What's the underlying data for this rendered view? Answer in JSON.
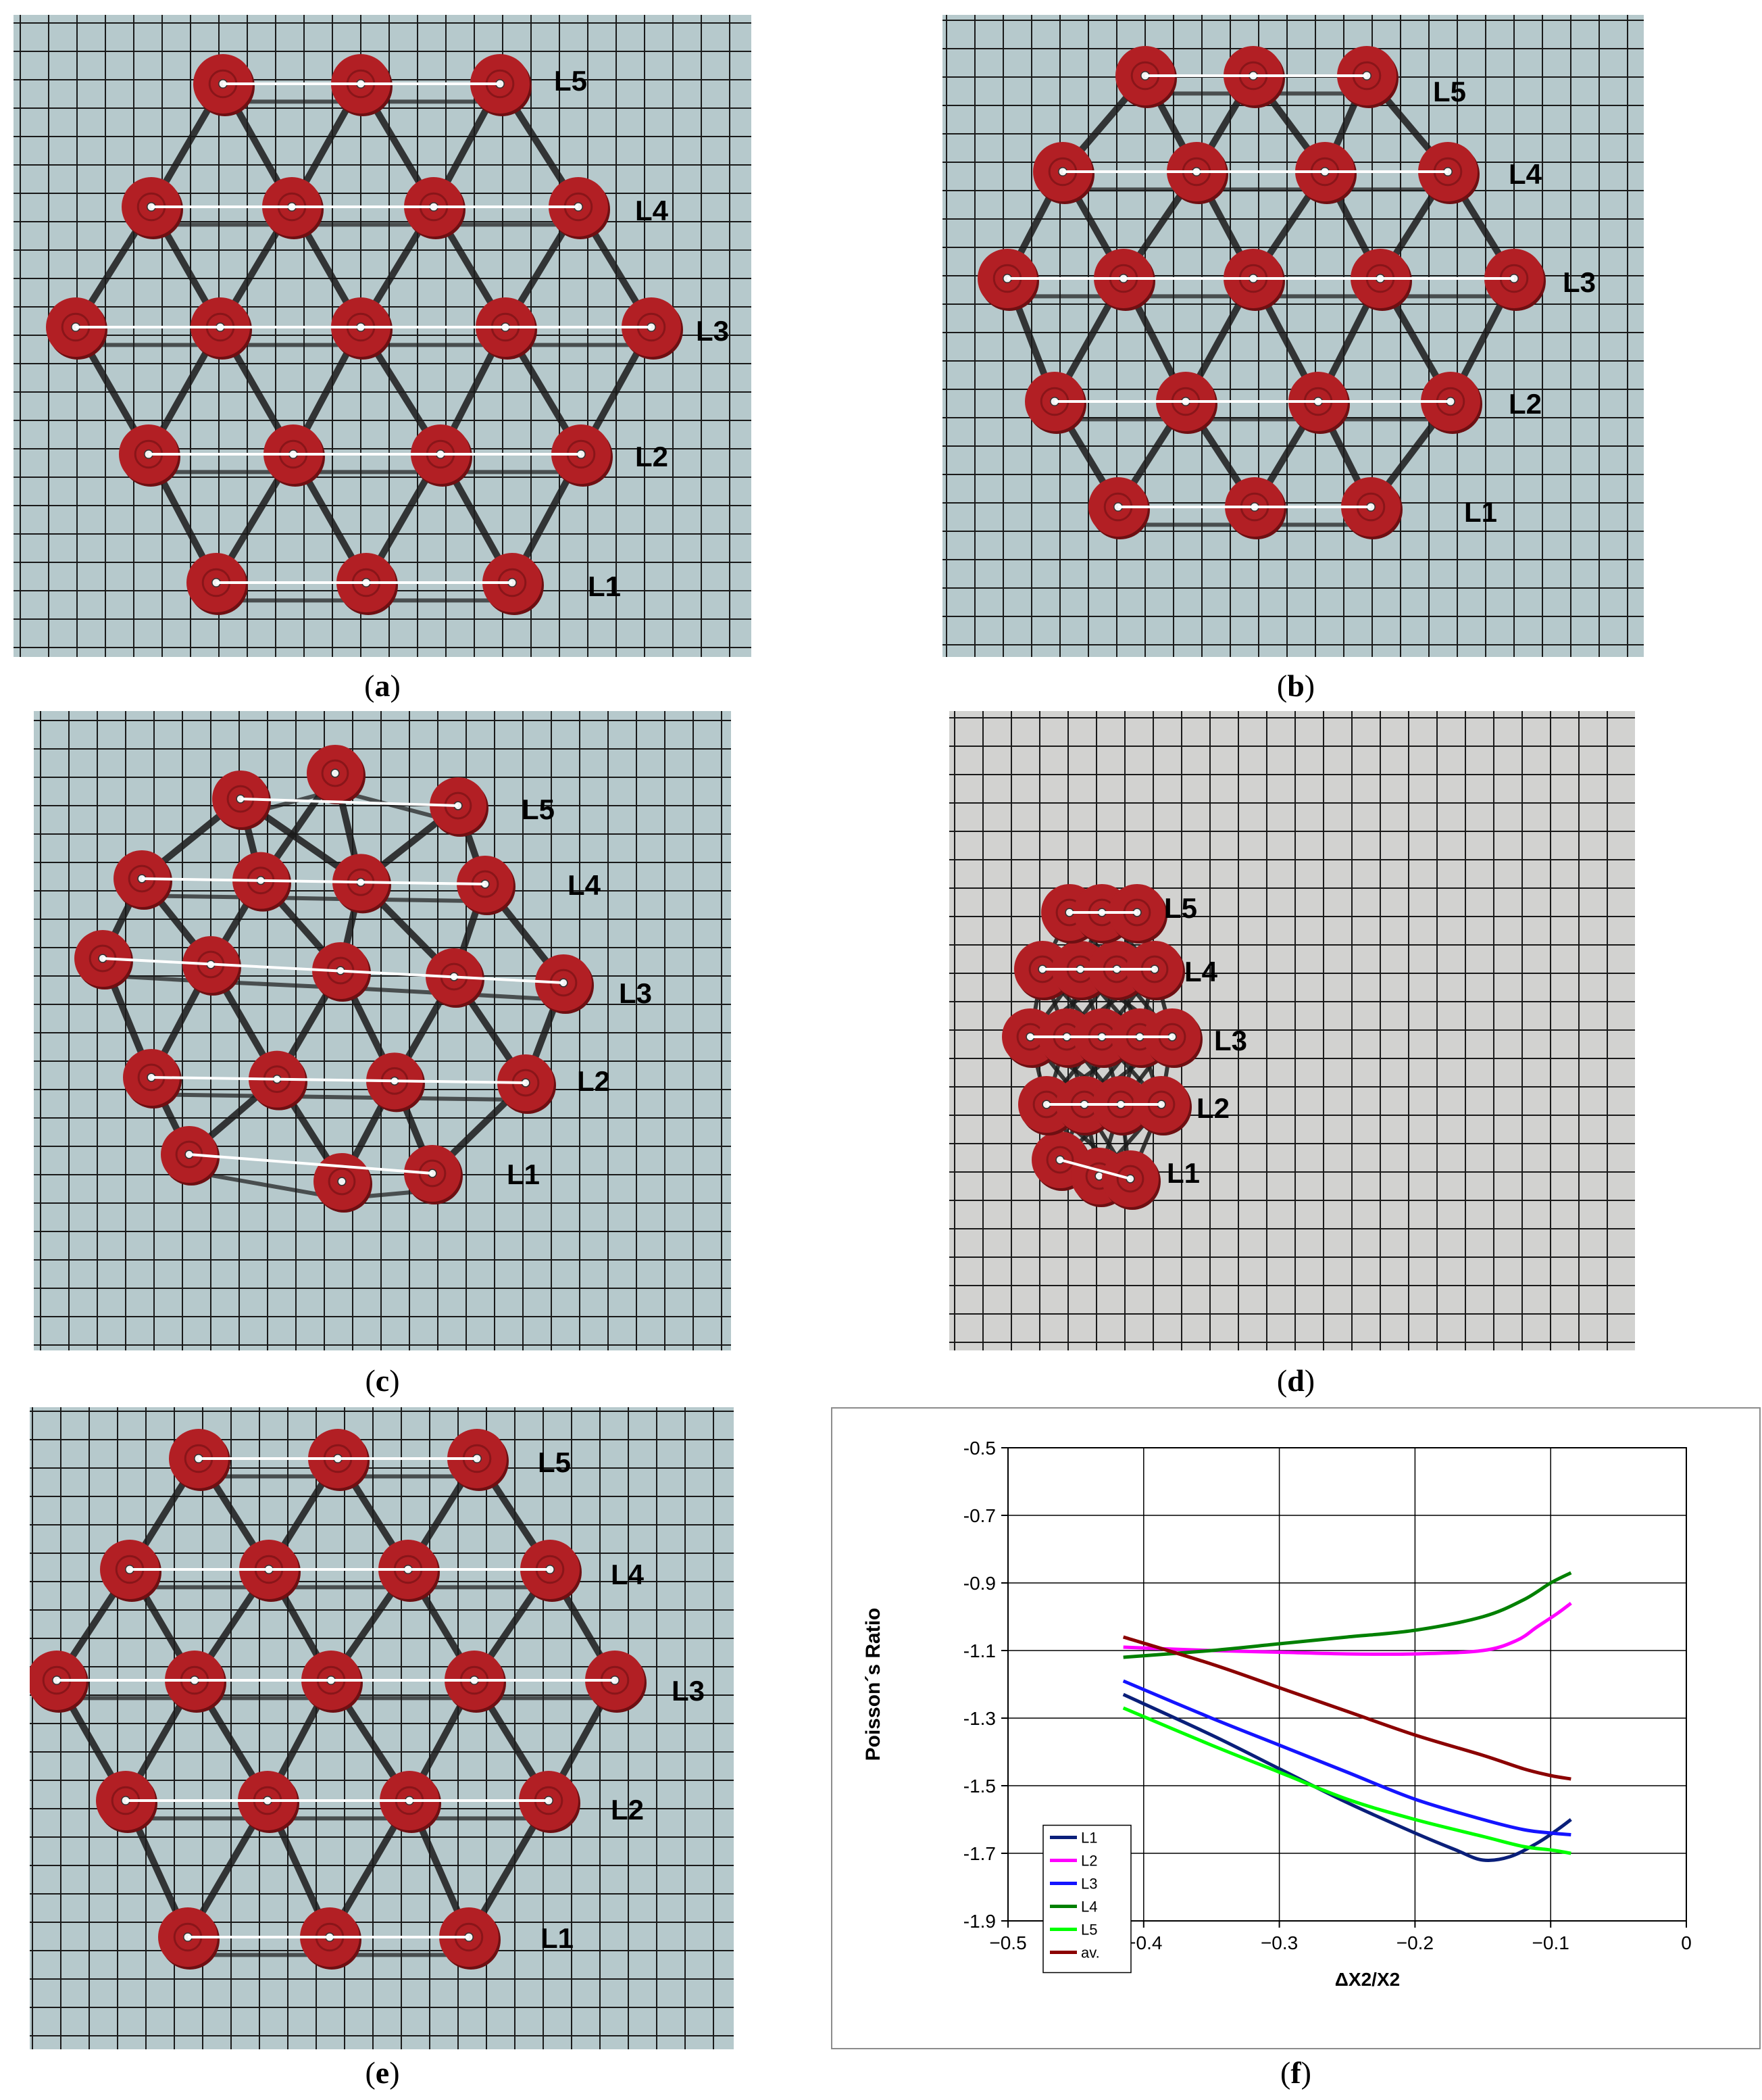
{
  "panels": [
    {
      "id": "a",
      "caption": "a"
    },
    {
      "id": "b",
      "caption": "b"
    },
    {
      "id": "c",
      "caption": "c"
    },
    {
      "id": "d",
      "caption": "d"
    },
    {
      "id": "e",
      "caption": "e"
    },
    {
      "id": "f",
      "caption": "f"
    }
  ],
  "row_labels": [
    "L1",
    "L2",
    "L3",
    "L4",
    "L5"
  ],
  "paren_open": "(",
  "paren_close": ")",
  "colors": {
    "board_bluegrey": "#b6c9cc",
    "board_grey": "#d2d2d0",
    "grid_line": "#1a1a1a",
    "disc_red": "#b21f24",
    "disc_dark": "#6e0f12",
    "ribbon": "#1b1b1b"
  },
  "chart_data": {
    "type": "line",
    "title": "",
    "xlabel": "ΔX2/X2",
    "ylabel": "Poisson´s Ratio",
    "xlim": [
      -0.5,
      0
    ],
    "ylim": [
      -1.9,
      -0.5
    ],
    "xticks": [
      "−0.5",
      "−0.4",
      "−0.3",
      "−0.2",
      "−0.1",
      "0"
    ],
    "yticks": [
      "-0.5",
      "-0.7",
      "-0.9",
      "-1.1",
      "-1.3",
      "-1.5",
      "-1.7",
      "-1.9"
    ],
    "grid": true,
    "legend_position": "bottom-left",
    "series": [
      {
        "name": "L1",
        "color": "#0a1f7a",
        "x": [
          -0.415,
          -0.35,
          -0.3,
          -0.25,
          -0.2,
          -0.17,
          -0.15,
          -0.13,
          -0.11,
          -0.095,
          -0.085
        ],
        "y": [
          -1.23,
          -1.35,
          -1.45,
          -1.55,
          -1.64,
          -1.69,
          -1.72,
          -1.71,
          -1.67,
          -1.63,
          -1.6
        ]
      },
      {
        "name": "L2",
        "color": "#ff00ff",
        "x": [
          -0.415,
          -0.35,
          -0.3,
          -0.25,
          -0.2,
          -0.15,
          -0.125,
          -0.11,
          -0.095,
          -0.085
        ],
        "y": [
          -1.09,
          -1.1,
          -1.105,
          -1.11,
          -1.11,
          -1.1,
          -1.07,
          -1.03,
          -0.99,
          -0.96
        ]
      },
      {
        "name": "L3",
        "color": "#1414ff",
        "x": [
          -0.415,
          -0.35,
          -0.3,
          -0.25,
          -0.2,
          -0.15,
          -0.12,
          -0.1,
          -0.085
        ],
        "y": [
          -1.19,
          -1.3,
          -1.38,
          -1.46,
          -1.54,
          -1.6,
          -1.63,
          -1.64,
          -1.645
        ]
      },
      {
        "name": "L4",
        "color": "#008000",
        "x": [
          -0.415,
          -0.35,
          -0.3,
          -0.25,
          -0.2,
          -0.15,
          -0.12,
          -0.1,
          -0.085
        ],
        "y": [
          -1.12,
          -1.1,
          -1.08,
          -1.06,
          -1.04,
          -1.0,
          -0.95,
          -0.9,
          -0.87
        ]
      },
      {
        "name": "L5",
        "color": "#00ff00",
        "x": [
          -0.415,
          -0.35,
          -0.3,
          -0.25,
          -0.2,
          -0.15,
          -0.12,
          -0.1,
          -0.085
        ],
        "y": [
          -1.27,
          -1.38,
          -1.46,
          -1.54,
          -1.6,
          -1.65,
          -1.68,
          -1.69,
          -1.7
        ]
      },
      {
        "name": "av.",
        "color": "#8b0000",
        "x": [
          -0.415,
          -0.35,
          -0.3,
          -0.25,
          -0.2,
          -0.15,
          -0.12,
          -0.1,
          -0.085
        ],
        "y": [
          -1.06,
          -1.14,
          -1.21,
          -1.28,
          -1.35,
          -1.41,
          -1.45,
          -1.47,
          -1.48
        ]
      }
    ]
  }
}
